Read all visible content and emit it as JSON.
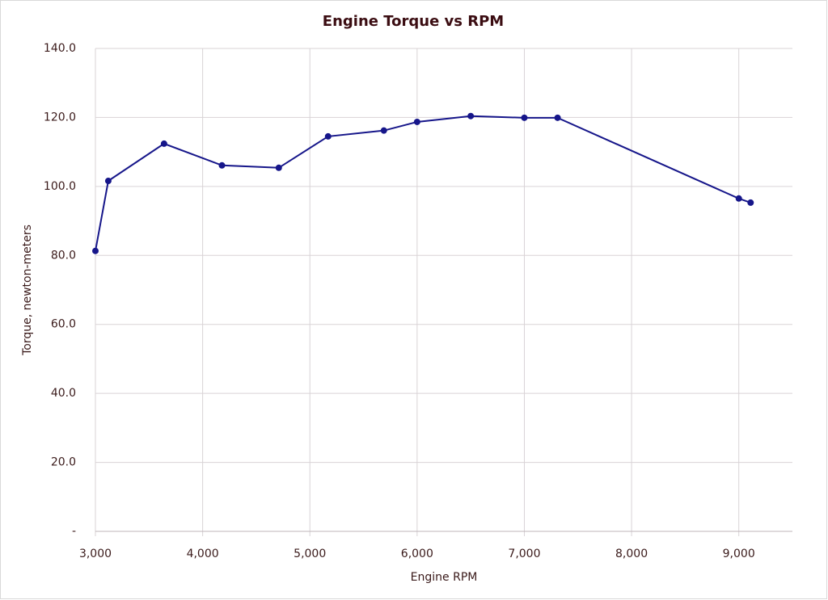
{
  "chart_data": {
    "type": "line",
    "title": "Engine Torque vs RPM",
    "x_label": "Engine RPM",
    "y_label": "Torque, newton-meters",
    "x": [
      3000,
      3120,
      3640,
      4180,
      4710,
      5170,
      5690,
      6000,
      6500,
      7000,
      7310,
      9000,
      9110
    ],
    "series": [
      {
        "name": "Torque",
        "color": "#16168a",
        "values": [
          81.3,
          101.6,
          112.4,
          106.1,
          105.4,
          114.5,
          116.2,
          118.7,
          120.4,
          119.9,
          119.9,
          96.5,
          95.3
        ]
      }
    ],
    "xlim": [
      3000,
      9500
    ],
    "xticks": [
      {
        "value": 3000,
        "label": "3,000"
      },
      {
        "value": 4000,
        "label": "4,000"
      },
      {
        "value": 5000,
        "label": "5,000"
      },
      {
        "value": 6000,
        "label": "6,000"
      },
      {
        "value": 7000,
        "label": "7,000"
      },
      {
        "value": 8000,
        "label": "8,000"
      },
      {
        "value": 9000,
        "label": "9,000"
      }
    ],
    "ylim": [
      0,
      140
    ],
    "yticks": [
      {
        "value": 0,
        "label": "-"
      },
      {
        "value": 20,
        "label": "20.0"
      },
      {
        "value": 40,
        "label": "40.0"
      },
      {
        "value": 60,
        "label": "60.0"
      },
      {
        "value": 80,
        "label": "80.0"
      },
      {
        "value": 100,
        "label": "100.0"
      },
      {
        "value": 120,
        "label": "120.0"
      },
      {
        "value": 140,
        "label": "140.0"
      }
    ],
    "grid": true
  }
}
